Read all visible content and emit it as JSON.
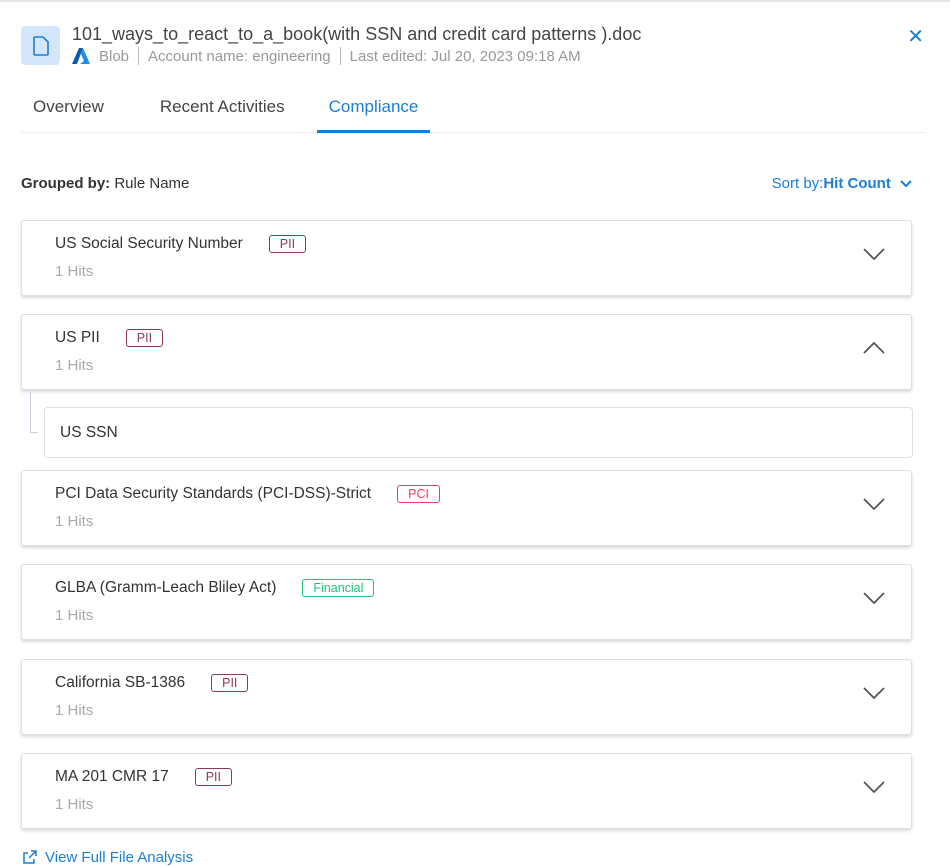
{
  "header": {
    "title": "101_ways_to_react_to_a_book(with SSN and credit card patterns ).doc",
    "source": "Blob",
    "account": "Account name: engineering",
    "last_edited": "Last edited: Jul 20, 2023 09:18 AM"
  },
  "tabs": [
    {
      "label": "Overview"
    },
    {
      "label": "Recent Activities"
    },
    {
      "label": "Compliance",
      "active": true
    }
  ],
  "toolbar": {
    "grouped_label": "Grouped by:",
    "grouped_value": "Rule Name",
    "sort_label": "Sort by:",
    "sort_value": "Hit Count"
  },
  "colors": {
    "accent": "#1a7fd4",
    "pii": "#8b3a52",
    "pci": "#ee3d6a",
    "financial": "#1bc47d"
  },
  "rules": [
    {
      "name": "US Social Security Number",
      "badge": "PII",
      "badge_type": "pii",
      "hits": "1 Hits",
      "expanded": false
    },
    {
      "name": "US PII",
      "badge": "PII",
      "badge_type": "pii",
      "hits": "1 Hits",
      "expanded": true,
      "children": [
        "US SSN"
      ]
    },
    {
      "name": "PCI Data Security Standards (PCI-DSS)-Strict",
      "badge": "PCI",
      "badge_type": "pci",
      "hits": "1 Hits",
      "expanded": false
    },
    {
      "name": "GLBA (Gramm-Leach Bliley Act)",
      "badge": "Financial",
      "badge_type": "financial",
      "hits": "1 Hits",
      "expanded": false
    },
    {
      "name": "California SB-1386",
      "badge": "PII",
      "badge_type": "pii",
      "hits": "1 Hits",
      "expanded": false
    },
    {
      "name": "MA 201 CMR 17",
      "badge": "PII",
      "badge_type": "pii",
      "hits": "1 Hits",
      "expanded": false
    }
  ],
  "footer": {
    "link": "View Full File Analysis"
  }
}
